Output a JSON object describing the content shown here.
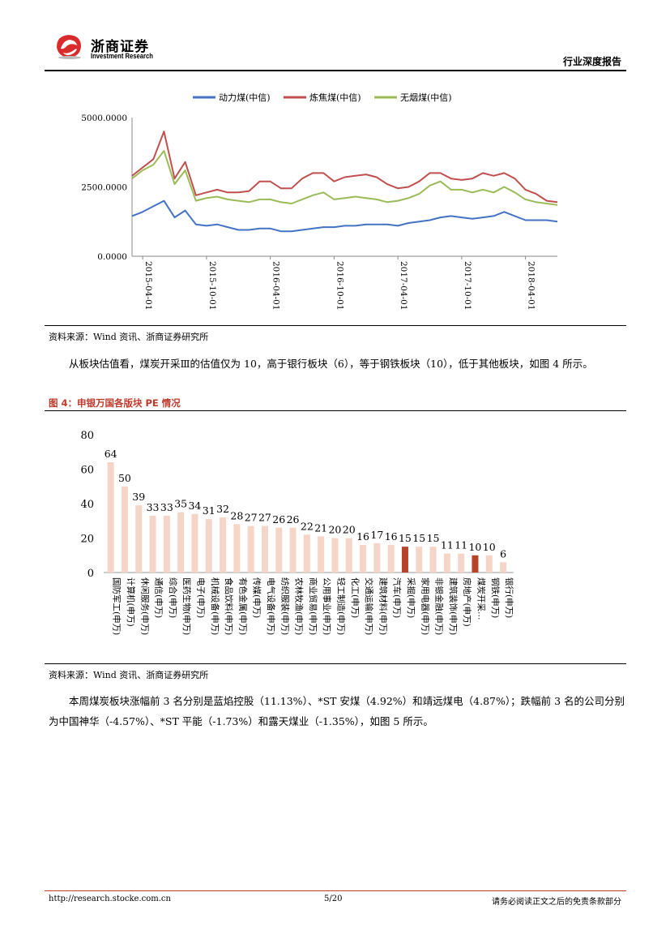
{
  "header": {
    "company_cn": "浙商证券",
    "company_en": "Investment Research",
    "title": "行业深度报告"
  },
  "chart1": {
    "source": "资料来源：Wind 资讯、浙商证券研究所"
  },
  "paragraph1": "从板块估值看，煤炭开采Ⅲ的估值仅为 10，高于银行板块（6），等于钢铁板块（10），低于其他板块，如图 4 所示。",
  "figure4": {
    "title": "图 4：申银万国各版块 PE 情况",
    "source": "资料来源：Wind 资讯、浙商证券研究所"
  },
  "paragraph2": "本周煤炭板块涨幅前 3 名分别是蓝焰控股（11.13%）、*ST 安煤（4.92%）和靖远煤电（4.87%）；跌幅前 3 名的公司分别为中国神华（-4.57%）、*ST 平能（-1.73%）和露天煤业（-1.35%），如图 5 所示。",
  "footer": {
    "url": "http://research.stocke.com.cn",
    "page": "5/20",
    "note": "请务必阅读正文之后的免责条款部分"
  },
  "chart_data": [
    {
      "type": "line",
      "legend_position": "top",
      "y_ticks": [
        "0.0000",
        "2500.0000",
        "5000.0000"
      ],
      "ylim": [
        0,
        5000
      ],
      "x_ticks": [
        "2015-04-01",
        "2015-10-01",
        "2016-04-01",
        "2016-10-01",
        "2017-04-01",
        "2017-10-01",
        "2018-04-01"
      ],
      "x": [
        "2015-03",
        "2015-04",
        "2015-05",
        "2015-06",
        "2015-07",
        "2015-08",
        "2015-09",
        "2015-10",
        "2015-11",
        "2015-12",
        "2016-01",
        "2016-02",
        "2016-03",
        "2016-04",
        "2016-05",
        "2016-06",
        "2016-07",
        "2016-08",
        "2016-09",
        "2016-10",
        "2016-11",
        "2016-12",
        "2017-01",
        "2017-02",
        "2017-03",
        "2017-04",
        "2017-05",
        "2017-06",
        "2017-07",
        "2017-08",
        "2017-09",
        "2017-10",
        "2017-11",
        "2017-12",
        "2018-01",
        "2018-02",
        "2018-03",
        "2018-04",
        "2018-05",
        "2018-06",
        "2018-07"
      ],
      "series": [
        {
          "name": "动力煤(中信)",
          "color": "#4472c4",
          "values": [
            1450,
            1600,
            1800,
            2000,
            1400,
            1650,
            1150,
            1100,
            1150,
            1050,
            950,
            950,
            1000,
            1000,
            900,
            900,
            950,
            1000,
            1050,
            1050,
            1100,
            1100,
            1150,
            1150,
            1150,
            1100,
            1200,
            1250,
            1300,
            1400,
            1450,
            1400,
            1350,
            1400,
            1450,
            1600,
            1450,
            1300,
            1300,
            1300,
            1250
          ]
        },
        {
          "name": "炼焦煤(中信)",
          "color": "#c0504d",
          "values": [
            2900,
            3200,
            3500,
            4500,
            2800,
            3400,
            2200,
            2300,
            2400,
            2300,
            2300,
            2350,
            2700,
            2700,
            2450,
            2450,
            2800,
            3000,
            3000,
            2700,
            2850,
            2900,
            2950,
            2850,
            2600,
            2450,
            2500,
            2700,
            3000,
            3000,
            2800,
            2750,
            2800,
            3000,
            2900,
            3000,
            2800,
            2400,
            2250,
            2000,
            1950
          ]
        },
        {
          "name": "无烟煤(中信)",
          "color": "#9bbb59",
          "values": [
            2800,
            3100,
            3300,
            3800,
            2600,
            3100,
            2000,
            2100,
            2150,
            2050,
            2000,
            1950,
            2050,
            2050,
            1950,
            1900,
            2050,
            2200,
            2300,
            2050,
            2100,
            2150,
            2100,
            2050,
            1950,
            2000,
            2100,
            2250,
            2550,
            2700,
            2400,
            2400,
            2300,
            2400,
            2300,
            2500,
            2300,
            2050,
            1950,
            1900,
            1850
          ]
        }
      ]
    },
    {
      "type": "bar",
      "ylim": [
        0,
        80
      ],
      "y_ticks": [
        0,
        20,
        40,
        60,
        80
      ],
      "categories": [
        "国防军工(申万)",
        "计算机(申万)",
        "休闲服务(申万)",
        "通信(申万)",
        "综合(申万)",
        "医药生物(申万)",
        "电子(申万)",
        "机械设备(申万)",
        "食品饮料(申万)",
        "有色金属(申万)",
        "传媒(申万)",
        "电气设备(申万)",
        "纺织服装(申万)",
        "农林牧渔(申万)",
        "商业贸易(申万)",
        "公用事业(申万)",
        "轻工制造(申万)",
        "化工(申万)",
        "交通运输(申万)",
        "建筑材料(申万)",
        "汽车(申万)",
        "采掘(申万)",
        "家用电器(申万)",
        "非银金融(申万)",
        "建筑装饰(申万)",
        "房地产(申万)",
        "煤炭开采…",
        "钢铁(申万)",
        "银行(申万)"
      ],
      "values": [
        64,
        50,
        39,
        33,
        33,
        35,
        34,
        31,
        32,
        28,
        27,
        27,
        26,
        26,
        22,
        21,
        20,
        20,
        16,
        17,
        16,
        15,
        15,
        15,
        11,
        11,
        10,
        10,
        6
      ],
      "highlight": [
        21,
        26
      ],
      "bar_color": "#f5d5c8",
      "highlight_color": "#b5442a"
    }
  ]
}
